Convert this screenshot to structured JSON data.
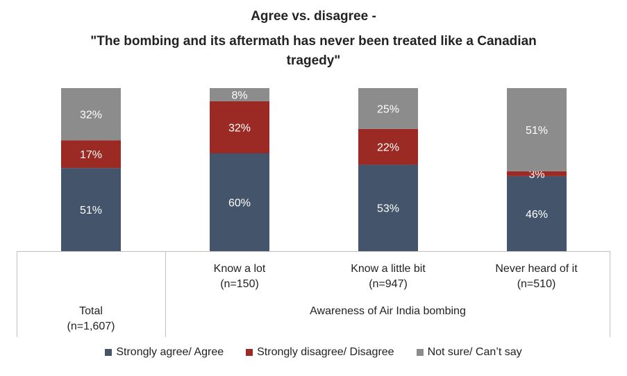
{
  "chart_data": {
    "type": "bar",
    "stacked": true,
    "title": "Agree vs. disagree -",
    "subtitle_lines": [
      "\"The bombing and its aftermath has never been treated like a Canadian",
      "tragedy\""
    ],
    "categories": [
      {
        "label": "Total",
        "n": "(n=1,607)"
      },
      {
        "label": "Know a lot",
        "n": "(n=150)"
      },
      {
        "label": "Know a little bit",
        "n": "(n=947)"
      },
      {
        "label": "Never heard of it",
        "n": "(n=510)"
      }
    ],
    "group_label": "Awareness of Air India bombing",
    "series": [
      {
        "name": "Strongly agree/ Agree",
        "color": "#44546a",
        "values": [
          51,
          60,
          53,
          46
        ],
        "labels": [
          "51%",
          "60%",
          "53%",
          "46%"
        ]
      },
      {
        "name": "Strongly disagree/ Disagree",
        "color": "#9b2a24",
        "values": [
          17,
          32,
          22,
          3
        ],
        "labels": [
          "17%",
          "32%",
          "22%",
          "3%"
        ]
      },
      {
        "name": "Not sure/ Can’t say",
        "color": "#8c8c8c",
        "values": [
          32,
          8,
          25,
          51
        ],
        "labels": [
          "32%",
          "8%",
          "25%",
          "51%"
        ]
      }
    ],
    "ylim": [
      0,
      100
    ],
    "legend_position": "bottom"
  }
}
